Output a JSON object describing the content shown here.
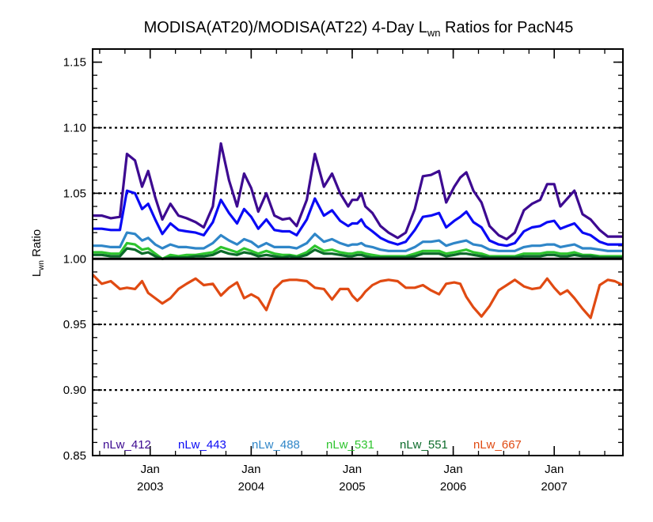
{
  "chart_data": {
    "type": "line",
    "title": "MODISA(AT20)/MODISA(AT22) 4-Day L",
    "title_sub": "wn",
    "title_suffix": " Ratios for PacN45",
    "ylabel": "L",
    "ylabel_sub": "wn",
    "ylabel_suffix": " Ratio",
    "xlim": [
      2002.43,
      2007.68
    ],
    "ylim": [
      0.85,
      1.16
    ],
    "yticks": [
      {
        "value": 0.85,
        "label": "0.85"
      },
      {
        "value": 0.9,
        "label": "0.90"
      },
      {
        "value": 0.95,
        "label": "0.95"
      },
      {
        "value": 1.0,
        "label": "1.00"
      },
      {
        "value": 1.05,
        "label": "1.05"
      },
      {
        "value": 1.1,
        "label": "1.10"
      },
      {
        "value": 1.15,
        "label": "1.15"
      }
    ],
    "xticks": [
      {
        "value": 2003.0,
        "month": "Jan",
        "year": "2003"
      },
      {
        "value": 2004.0,
        "month": "Jan",
        "year": "2004"
      },
      {
        "value": 2005.0,
        "month": "Jan",
        "year": "2005"
      },
      {
        "value": 2006.0,
        "month": "Jan",
        "year": "2006"
      },
      {
        "value": 2007.0,
        "month": "Jan",
        "year": "2007"
      }
    ],
    "dotted_gridlines": [
      0.9,
      0.95,
      1.05,
      1.1
    ],
    "reference_line": 1.0,
    "legend_placement": "bottom",
    "series": [
      {
        "name": "nLw_412",
        "color": "#3d0a91",
        "x": [
          2002.43,
          2002.52,
          2002.61,
          2002.7,
          2002.77,
          2002.85,
          2002.92,
          2002.98,
          2003.05,
          2003.12,
          2003.2,
          2003.28,
          2003.36,
          2003.45,
          2003.53,
          2003.62,
          2003.7,
          2003.78,
          2003.86,
          2003.93,
          2004.0,
          2004.07,
          2004.15,
          2004.23,
          2004.31,
          2004.38,
          2004.45,
          2004.55,
          2004.63,
          2004.72,
          2004.8,
          2004.88,
          2004.96,
          2005.0,
          2005.05,
          2005.09,
          2005.13,
          2005.2,
          2005.28,
          2005.36,
          2005.45,
          2005.53,
          2005.62,
          2005.7,
          2005.78,
          2005.86,
          2005.93,
          2006.01,
          2006.07,
          2006.13,
          2006.2,
          2006.28,
          2006.36,
          2006.45,
          2006.53,
          2006.61,
          2006.7,
          2006.78,
          2006.86,
          2006.93,
          2007.0,
          2007.06,
          2007.13,
          2007.2,
          2007.28,
          2007.36,
          2007.45,
          2007.53,
          2007.6,
          2007.68
        ],
        "y": [
          1.033,
          1.033,
          1.031,
          1.032,
          1.08,
          1.075,
          1.055,
          1.067,
          1.047,
          1.03,
          1.042,
          1.033,
          1.031,
          1.028,
          1.024,
          1.04,
          1.088,
          1.06,
          1.04,
          1.065,
          1.054,
          1.036,
          1.05,
          1.033,
          1.03,
          1.031,
          1.025,
          1.045,
          1.08,
          1.055,
          1.065,
          1.05,
          1.04,
          1.045,
          1.045,
          1.05,
          1.04,
          1.035,
          1.025,
          1.02,
          1.016,
          1.02,
          1.038,
          1.063,
          1.064,
          1.067,
          1.043,
          1.055,
          1.062,
          1.066,
          1.052,
          1.043,
          1.025,
          1.018,
          1.015,
          1.02,
          1.037,
          1.042,
          1.045,
          1.057,
          1.057,
          1.04,
          1.046,
          1.052,
          1.034,
          1.03,
          1.022,
          1.017,
          1.017,
          1.017
        ]
      },
      {
        "name": "nLw_443",
        "color": "#0a0af5",
        "x": [
          2002.43,
          2002.52,
          2002.61,
          2002.7,
          2002.77,
          2002.85,
          2002.92,
          2002.98,
          2003.05,
          2003.12,
          2003.2,
          2003.28,
          2003.36,
          2003.45,
          2003.53,
          2003.62,
          2003.7,
          2003.78,
          2003.86,
          2003.93,
          2004.0,
          2004.07,
          2004.15,
          2004.23,
          2004.31,
          2004.38,
          2004.45,
          2004.55,
          2004.63,
          2004.72,
          2004.8,
          2004.88,
          2004.96,
          2005.0,
          2005.05,
          2005.09,
          2005.13,
          2005.2,
          2005.28,
          2005.36,
          2005.45,
          2005.53,
          2005.62,
          2005.7,
          2005.78,
          2005.86,
          2005.93,
          2006.01,
          2006.07,
          2006.13,
          2006.2,
          2006.28,
          2006.36,
          2006.45,
          2006.53,
          2006.61,
          2006.7,
          2006.78,
          2006.86,
          2006.93,
          2007.0,
          2007.06,
          2007.13,
          2007.2,
          2007.28,
          2007.36,
          2007.45,
          2007.53,
          2007.6,
          2007.68
        ],
        "y": [
          1.023,
          1.023,
          1.022,
          1.022,
          1.052,
          1.05,
          1.038,
          1.042,
          1.03,
          1.019,
          1.027,
          1.022,
          1.021,
          1.02,
          1.018,
          1.028,
          1.045,
          1.035,
          1.027,
          1.038,
          1.032,
          1.023,
          1.03,
          1.022,
          1.021,
          1.021,
          1.018,
          1.03,
          1.046,
          1.033,
          1.037,
          1.029,
          1.025,
          1.027,
          1.027,
          1.03,
          1.025,
          1.021,
          1.016,
          1.013,
          1.011,
          1.013,
          1.022,
          1.032,
          1.033,
          1.035,
          1.024,
          1.029,
          1.032,
          1.036,
          1.028,
          1.024,
          1.014,
          1.011,
          1.01,
          1.012,
          1.021,
          1.024,
          1.025,
          1.028,
          1.029,
          1.023,
          1.025,
          1.027,
          1.02,
          1.018,
          1.013,
          1.011,
          1.011,
          1.011
        ]
      },
      {
        "name": "nLw_488",
        "color": "#2f86c8",
        "x": [
          2002.43,
          2002.52,
          2002.61,
          2002.7,
          2002.77,
          2002.85,
          2002.92,
          2002.98,
          2003.05,
          2003.12,
          2003.2,
          2003.28,
          2003.36,
          2003.45,
          2003.53,
          2003.62,
          2003.7,
          2003.78,
          2003.86,
          2003.93,
          2004.0,
          2004.07,
          2004.15,
          2004.23,
          2004.31,
          2004.38,
          2004.45,
          2004.55,
          2004.63,
          2004.72,
          2004.8,
          2004.88,
          2004.96,
          2005.0,
          2005.05,
          2005.09,
          2005.13,
          2005.2,
          2005.28,
          2005.36,
          2005.45,
          2005.53,
          2005.62,
          2005.7,
          2005.78,
          2005.86,
          2005.93,
          2006.01,
          2006.07,
          2006.13,
          2006.2,
          2006.28,
          2006.36,
          2006.45,
          2006.53,
          2006.61,
          2006.7,
          2006.78,
          2006.86,
          2006.93,
          2007.0,
          2007.06,
          2007.13,
          2007.2,
          2007.28,
          2007.36,
          2007.45,
          2007.53,
          2007.6,
          2007.68
        ],
        "y": [
          1.01,
          1.01,
          1.009,
          1.009,
          1.02,
          1.019,
          1.014,
          1.016,
          1.011,
          1.008,
          1.011,
          1.009,
          1.009,
          1.008,
          1.008,
          1.012,
          1.018,
          1.014,
          1.011,
          1.015,
          1.013,
          1.009,
          1.012,
          1.009,
          1.009,
          1.009,
          1.008,
          1.012,
          1.019,
          1.013,
          1.015,
          1.012,
          1.01,
          1.011,
          1.011,
          1.012,
          1.01,
          1.009,
          1.007,
          1.006,
          1.006,
          1.006,
          1.009,
          1.013,
          1.013,
          1.014,
          1.01,
          1.012,
          1.013,
          1.014,
          1.011,
          1.01,
          1.007,
          1.006,
          1.006,
          1.006,
          1.009,
          1.01,
          1.01,
          1.011,
          1.011,
          1.009,
          1.01,
          1.011,
          1.008,
          1.008,
          1.007,
          1.006,
          1.006,
          1.006
        ]
      },
      {
        "name": "nLw_531",
        "color": "#2ec42e",
        "x": [
          2002.43,
          2002.52,
          2002.61,
          2002.7,
          2002.77,
          2002.85,
          2002.92,
          2002.98,
          2003.05,
          2003.12,
          2003.2,
          2003.28,
          2003.36,
          2003.45,
          2003.53,
          2003.62,
          2003.7,
          2003.78,
          2003.86,
          2003.93,
          2004.0,
          2004.07,
          2004.15,
          2004.23,
          2004.31,
          2004.38,
          2004.45,
          2004.55,
          2004.63,
          2004.72,
          2004.8,
          2004.88,
          2004.96,
          2005.0,
          2005.05,
          2005.09,
          2005.13,
          2005.2,
          2005.28,
          2005.36,
          2005.45,
          2005.53,
          2005.62,
          2005.7,
          2005.78,
          2005.86,
          2005.93,
          2006.01,
          2006.07,
          2006.13,
          2006.2,
          2006.28,
          2006.36,
          2006.45,
          2006.53,
          2006.61,
          2006.7,
          2006.78,
          2006.86,
          2006.93,
          2007.0,
          2007.06,
          2007.13,
          2007.2,
          2007.28,
          2007.36,
          2007.45,
          2007.53,
          2007.6,
          2007.68
        ],
        "y": [
          1.005,
          1.005,
          1.004,
          1.004,
          1.012,
          1.011,
          1.007,
          1.008,
          1.004,
          1.0,
          1.003,
          1.002,
          1.003,
          1.003,
          1.004,
          1.005,
          1.009,
          1.007,
          1.005,
          1.008,
          1.006,
          1.004,
          1.006,
          1.004,
          1.003,
          1.003,
          1.002,
          1.005,
          1.01,
          1.006,
          1.007,
          1.005,
          1.004,
          1.004,
          1.005,
          1.005,
          1.004,
          1.003,
          1.002,
          1.002,
          1.002,
          1.002,
          1.004,
          1.006,
          1.006,
          1.006,
          1.004,
          1.005,
          1.006,
          1.007,
          1.005,
          1.004,
          1.002,
          1.002,
          1.002,
          1.002,
          1.004,
          1.004,
          1.004,
          1.005,
          1.005,
          1.004,
          1.004,
          1.005,
          1.003,
          1.003,
          1.002,
          1.002,
          1.002,
          1.002
        ]
      },
      {
        "name": "nLw_551",
        "color": "#0c6b2a",
        "x": [
          2002.43,
          2002.52,
          2002.61,
          2002.7,
          2002.77,
          2002.85,
          2002.92,
          2002.98,
          2003.05,
          2003.12,
          2003.2,
          2003.28,
          2003.36,
          2003.45,
          2003.53,
          2003.62,
          2003.7,
          2003.78,
          2003.86,
          2003.93,
          2004.0,
          2004.07,
          2004.15,
          2004.23,
          2004.31,
          2004.38,
          2004.45,
          2004.55,
          2004.63,
          2004.72,
          2004.8,
          2004.88,
          2004.96,
          2005.0,
          2005.05,
          2005.09,
          2005.13,
          2005.2,
          2005.28,
          2005.36,
          2005.45,
          2005.53,
          2005.62,
          2005.7,
          2005.78,
          2005.86,
          2005.93,
          2006.01,
          2006.07,
          2006.13,
          2006.2,
          2006.28,
          2006.36,
          2006.45,
          2006.53,
          2006.61,
          2006.7,
          2006.78,
          2006.86,
          2006.93,
          2007.0,
          2007.06,
          2007.13,
          2007.2,
          2007.28,
          2007.36,
          2007.45,
          2007.53,
          2007.6,
          2007.68
        ],
        "y": [
          1.003,
          1.003,
          1.002,
          1.002,
          1.008,
          1.007,
          1.004,
          1.005,
          1.002,
          1.0,
          1.001,
          1.001,
          1.001,
          1.002,
          1.002,
          1.003,
          1.006,
          1.004,
          1.003,
          1.005,
          1.004,
          1.002,
          1.003,
          1.002,
          1.001,
          1.002,
          1.001,
          1.003,
          1.007,
          1.004,
          1.004,
          1.003,
          1.002,
          1.002,
          1.003,
          1.003,
          1.002,
          1.001,
          1.001,
          1.001,
          1.001,
          1.001,
          1.002,
          1.004,
          1.004,
          1.004,
          1.002,
          1.003,
          1.004,
          1.004,
          1.003,
          1.002,
          1.001,
          1.001,
          1.001,
          1.001,
          1.002,
          1.002,
          1.002,
          1.003,
          1.003,
          1.002,
          1.002,
          1.003,
          1.002,
          1.002,
          1.001,
          1.001,
          1.001,
          1.001
        ]
      },
      {
        "name": "nLw_667",
        "color": "#e04a12",
        "x": [
          2002.43,
          2002.52,
          2002.61,
          2002.7,
          2002.77,
          2002.85,
          2002.92,
          2002.98,
          2003.05,
          2003.12,
          2003.2,
          2003.28,
          2003.36,
          2003.45,
          2003.53,
          2003.62,
          2003.7,
          2003.78,
          2003.86,
          2003.93,
          2004.0,
          2004.07,
          2004.15,
          2004.23,
          2004.31,
          2004.38,
          2004.45,
          2004.55,
          2004.63,
          2004.72,
          2004.8,
          2004.88,
          2004.96,
          2005.0,
          2005.05,
          2005.09,
          2005.13,
          2005.2,
          2005.28,
          2005.36,
          2005.45,
          2005.53,
          2005.62,
          2005.7,
          2005.78,
          2005.86,
          2005.93,
          2006.01,
          2006.07,
          2006.13,
          2006.2,
          2006.28,
          2006.36,
          2006.45,
          2006.53,
          2006.61,
          2006.7,
          2006.78,
          2006.86,
          2006.93,
          2007.0,
          2007.06,
          2007.13,
          2007.2,
          2007.28,
          2007.36,
          2007.45,
          2007.53,
          2007.6,
          2007.68
        ],
        "y": [
          0.988,
          0.981,
          0.983,
          0.977,
          0.978,
          0.977,
          0.983,
          0.974,
          0.97,
          0.966,
          0.97,
          0.977,
          0.981,
          0.985,
          0.98,
          0.981,
          0.972,
          0.978,
          0.982,
          0.97,
          0.973,
          0.97,
          0.961,
          0.977,
          0.983,
          0.984,
          0.984,
          0.983,
          0.978,
          0.977,
          0.969,
          0.977,
          0.977,
          0.972,
          0.968,
          0.971,
          0.975,
          0.98,
          0.983,
          0.984,
          0.983,
          0.978,
          0.978,
          0.98,
          0.976,
          0.973,
          0.981,
          0.982,
          0.981,
          0.971,
          0.963,
          0.956,
          0.964,
          0.976,
          0.98,
          0.984,
          0.979,
          0.977,
          0.978,
          0.985,
          0.978,
          0.973,
          0.976,
          0.97,
          0.962,
          0.955,
          0.98,
          0.984,
          0.983,
          0.98
        ]
      }
    ]
  }
}
